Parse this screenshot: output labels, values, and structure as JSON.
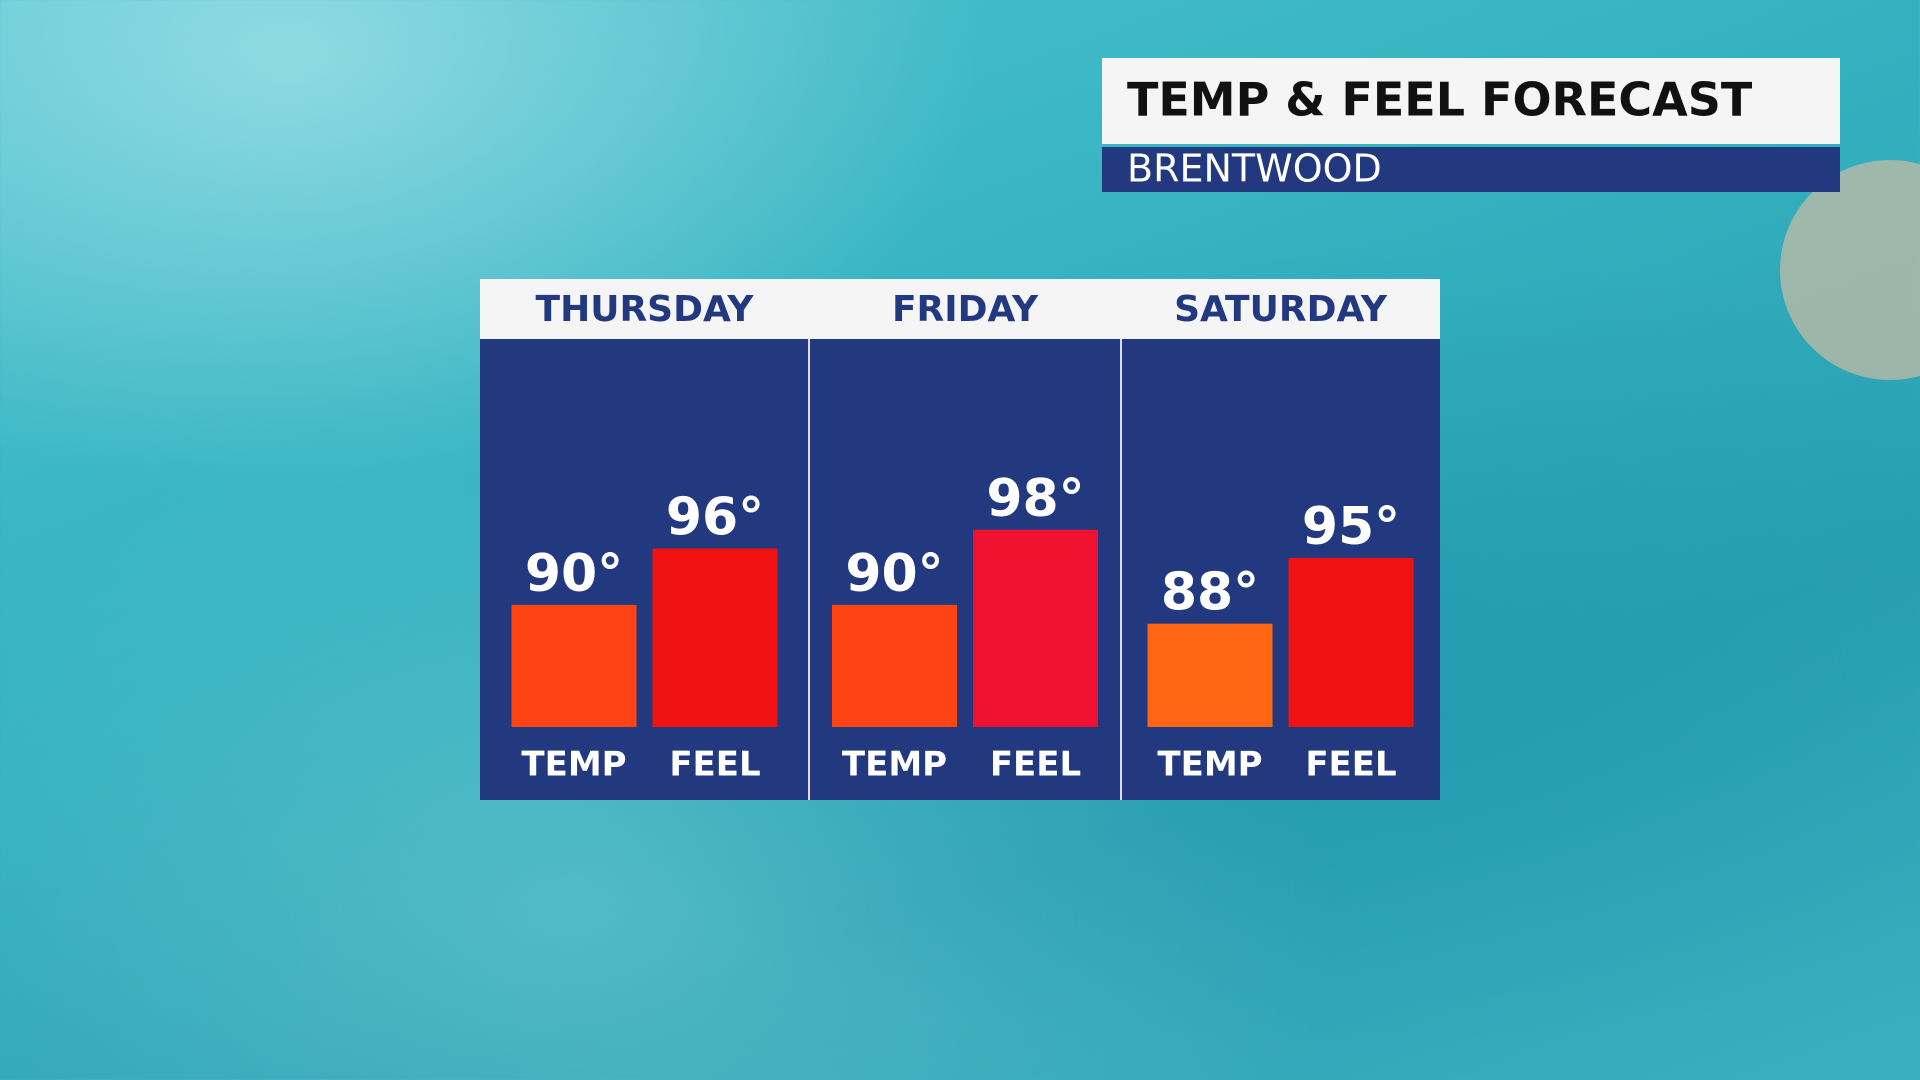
{
  "chart_data": {
    "type": "bar",
    "title": "TEMP & FEEL FORECAST",
    "subtitle": "BRENTWOOD",
    "categories": [
      "THURSDAY",
      "FRIDAY",
      "SATURDAY"
    ],
    "series": [
      {
        "name": "TEMP",
        "colors": [
          "#ff4413",
          "#ff4413",
          "#ff6614"
        ],
        "values": [
          90,
          90,
          88
        ],
        "value_labels": [
          "90°",
          "90°",
          "88°"
        ]
      },
      {
        "name": "FEEL",
        "colors": [
          "#f01212",
          "#f01030",
          "#f01212"
        ],
        "values": [
          96,
          98,
          95
        ],
        "value_labels": [
          "96°",
          "98°",
          "95°"
        ]
      }
    ],
    "ylim": [
      77,
      100
    ]
  }
}
